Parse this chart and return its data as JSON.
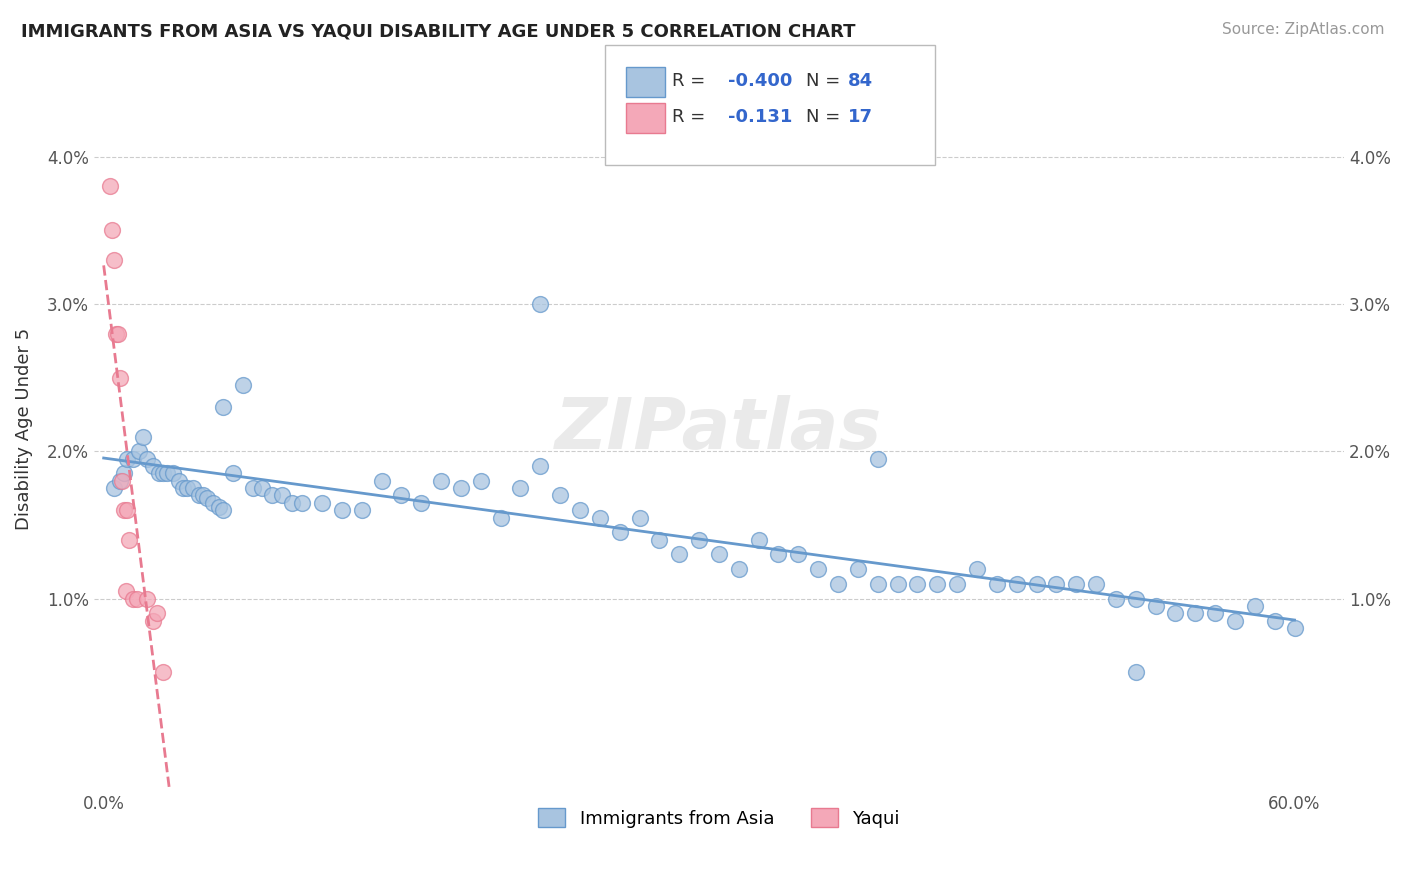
{
  "title": "IMMIGRANTS FROM ASIA VS YAQUI DISABILITY AGE UNDER 5 CORRELATION CHART",
  "source": "Source: ZipAtlas.com",
  "ylabel": "Disability Age Under 5",
  "color_blue": "#a8c4e0",
  "color_pink": "#f4a8b8",
  "line_blue": "#6699cc",
  "line_pink": "#e87a90",
  "blue_x": [
    0.005,
    0.008,
    0.01,
    0.012,
    0.015,
    0.018,
    0.02,
    0.022,
    0.025,
    0.028,
    0.03,
    0.032,
    0.035,
    0.038,
    0.04,
    0.042,
    0.045,
    0.048,
    0.05,
    0.052,
    0.055,
    0.058,
    0.06,
    0.065,
    0.07,
    0.075,
    0.08,
    0.085,
    0.09,
    0.095,
    0.1,
    0.11,
    0.12,
    0.13,
    0.14,
    0.15,
    0.16,
    0.17,
    0.18,
    0.19,
    0.2,
    0.21,
    0.22,
    0.23,
    0.24,
    0.25,
    0.26,
    0.27,
    0.28,
    0.29,
    0.3,
    0.31,
    0.32,
    0.33,
    0.34,
    0.35,
    0.36,
    0.37,
    0.38,
    0.39,
    0.4,
    0.41,
    0.42,
    0.43,
    0.44,
    0.45,
    0.46,
    0.47,
    0.48,
    0.49,
    0.5,
    0.51,
    0.52,
    0.53,
    0.54,
    0.55,
    0.56,
    0.57,
    0.59,
    0.6,
    0.22,
    0.39,
    0.52,
    0.58,
    0.06
  ],
  "blue_y": [
    0.0175,
    0.018,
    0.0185,
    0.0195,
    0.0195,
    0.02,
    0.021,
    0.0195,
    0.019,
    0.0185,
    0.0185,
    0.0185,
    0.0185,
    0.018,
    0.0175,
    0.0175,
    0.0175,
    0.017,
    0.017,
    0.0168,
    0.0165,
    0.0162,
    0.016,
    0.0185,
    0.0245,
    0.0175,
    0.0175,
    0.017,
    0.017,
    0.0165,
    0.0165,
    0.0165,
    0.016,
    0.016,
    0.018,
    0.017,
    0.0165,
    0.018,
    0.0175,
    0.018,
    0.0155,
    0.0175,
    0.019,
    0.017,
    0.016,
    0.0155,
    0.0145,
    0.0155,
    0.014,
    0.013,
    0.014,
    0.013,
    0.012,
    0.014,
    0.013,
    0.013,
    0.012,
    0.011,
    0.012,
    0.011,
    0.011,
    0.011,
    0.011,
    0.011,
    0.012,
    0.011,
    0.011,
    0.011,
    0.011,
    0.011,
    0.011,
    0.01,
    0.01,
    0.0095,
    0.009,
    0.009,
    0.009,
    0.0085,
    0.0085,
    0.008,
    0.03,
    0.0195,
    0.005,
    0.0095,
    0.023
  ],
  "pink_x": [
    0.003,
    0.004,
    0.005,
    0.006,
    0.007,
    0.008,
    0.009,
    0.01,
    0.011,
    0.012,
    0.013,
    0.015,
    0.017,
    0.022,
    0.025,
    0.027,
    0.03
  ],
  "pink_y": [
    0.038,
    0.035,
    0.033,
    0.028,
    0.028,
    0.025,
    0.018,
    0.016,
    0.0105,
    0.016,
    0.014,
    0.01,
    0.01,
    0.01,
    0.0085,
    0.009,
    0.005
  ]
}
